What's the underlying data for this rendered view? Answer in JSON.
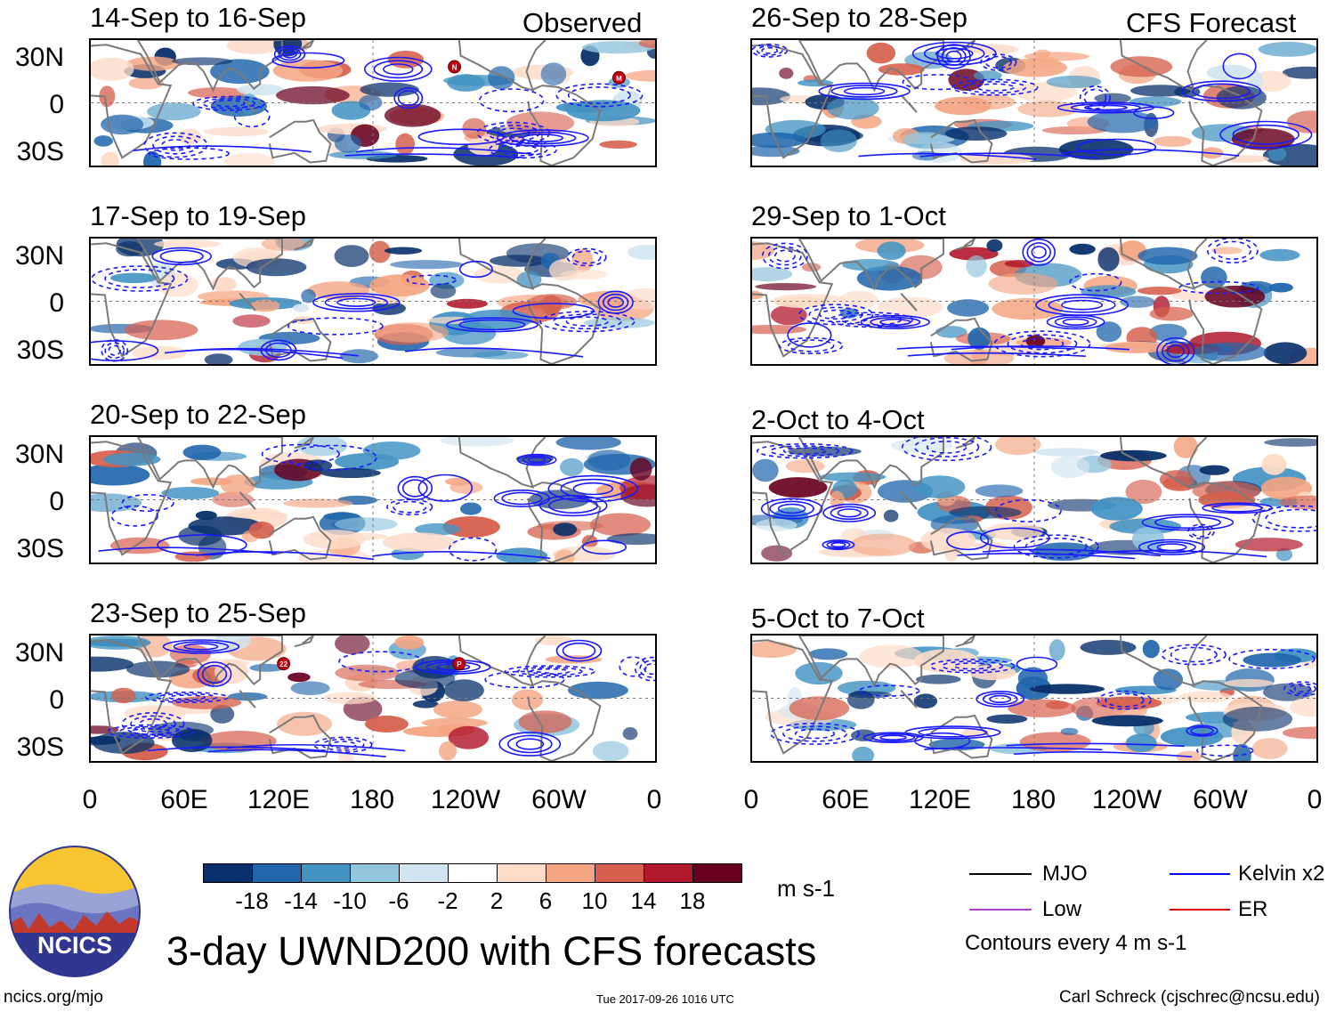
{
  "headers": {
    "left": "Observed",
    "right": "CFS Forecast"
  },
  "panels": {
    "observed": [
      {
        "title": "14-Sep to 16-Sep",
        "storms": [
          "N",
          "M",
          "L"
        ]
      },
      {
        "title": "17-Sep to 19-Sep",
        "storms": []
      },
      {
        "title": "20-Sep to 22-Sep",
        "storms": []
      },
      {
        "title": "23-Sep to 25-Sep",
        "storms": [
          "22",
          "P"
        ]
      }
    ],
    "forecast": [
      {
        "title": "26-Sep to 28-Sep"
      },
      {
        "title": "29-Sep to 1-Oct"
      },
      {
        "title": "2-Oct to 4-Oct"
      },
      {
        "title": "5-Oct to 7-Oct"
      }
    ]
  },
  "chart_data": {
    "type": "heatmap",
    "title": "3-day UWND200 with CFS forecasts",
    "variable": "200-hPa zonal wind anomaly",
    "units": "m s-1",
    "y_tick_labels": [
      "30N",
      "0",
      "30S"
    ],
    "x_tick_labels": [
      "0",
      "60E",
      "120E",
      "180",
      "120W",
      "60W",
      "0"
    ],
    "xlim_deg_east": [
      0,
      360
    ],
    "ylim_deg": [
      -40,
      40
    ],
    "colorbar": {
      "levels": [
        "-18",
        "-14",
        "-10",
        "-6",
        "-2",
        "2",
        "6",
        "10",
        "14",
        "18"
      ],
      "colors": [
        "#08306b",
        "#2166ac",
        "#4393c3",
        "#92c5de",
        "#d1e5f0",
        "#ffffff",
        "#fddbc7",
        "#f4a582",
        "#d6604d",
        "#b2182b",
        "#67001f"
      ]
    },
    "contours": [
      {
        "name": "MJO",
        "color": "#000000"
      },
      {
        "name": "Kelvin x2",
        "color": "#0000ff"
      },
      {
        "name": "Low",
        "color": "#b040d0"
      },
      {
        "name": "ER",
        "color": "#e00000"
      }
    ],
    "contour_interval_label": "Contours every 4 m s-1"
  },
  "footer": {
    "brand": "NCICS",
    "url": "ncics.org/mjo",
    "timestamp": "Tue 2017-09-26 1016 UTC",
    "author": "Carl Schreck (cjschrec@ncsu.edu)"
  }
}
